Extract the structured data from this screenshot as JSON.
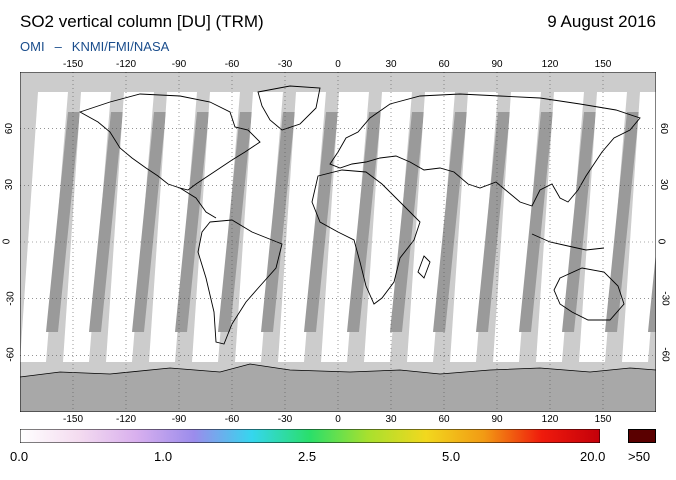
{
  "header": {
    "title": "SO2 vertical column [DU] (TRM)",
    "date": "9 August 2016",
    "credit_left": "OMI",
    "credit_sep": "–",
    "credit_right": "KNMI/FMI/NASA"
  },
  "map": {
    "projection": "equirectangular",
    "lon_range": [
      -180,
      180
    ],
    "lat_range": [
      -90,
      90
    ],
    "lon_ticks": [
      "-150",
      "-120",
      "-90",
      "-60",
      "-30",
      "0",
      "30",
      "60",
      "90",
      "120",
      "150"
    ],
    "lat_ticks": [
      "60",
      "30",
      "0",
      "-30",
      "-60"
    ],
    "grid": "dotted",
    "colors": {
      "background": "#cccccc",
      "swath": "#ffffff",
      "gap": "#9a9a9a",
      "coast": "#000000"
    }
  },
  "colorbar": {
    "labels": [
      "0.0",
      "1.0",
      "2.5",
      "5.0",
      "20.0"
    ],
    "overflow_label": ">50",
    "colors": [
      "#ffffff",
      "#f4dcf0",
      "#d9b0ee",
      "#9b8cec",
      "#35d6ee",
      "#2adf6a",
      "#a8e02e",
      "#f2d81e",
      "#f29a14",
      "#ef1a0c",
      "#c4000a"
    ]
  }
}
